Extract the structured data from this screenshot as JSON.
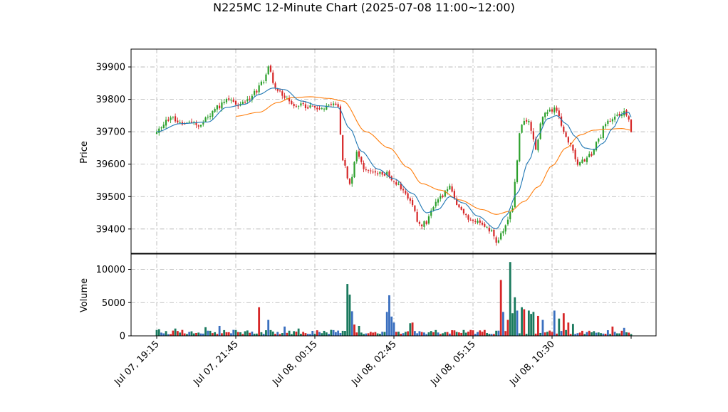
{
  "title": "N225MC 12-Minute Chart (2025-07-08 11:00~12:00)",
  "chart_data": {
    "type": "candlestick",
    "title": "N225MC 12-Minute Chart (2025-07-08 11:00~12:00)",
    "price_panel": {
      "ylabel": "Price",
      "yticks": [
        39400,
        39500,
        39600,
        39700,
        39800,
        39900
      ],
      "ylim": [
        39325,
        39955
      ],
      "grid": true
    },
    "volume_panel": {
      "ylabel": "Volume",
      "yticks": [
        0,
        5000,
        10000
      ],
      "yticks_labels": [
        "0",
        "5000",
        "10000"
      ],
      "ylim": [
        0,
        12300
      ],
      "grid": true
    },
    "xticks": [
      {
        "label": "Jul 07, 19:15",
        "index": 0
      },
      {
        "label": "Jul 07, 21:45",
        "index": 34
      },
      {
        "label": "Jul 08, 00:15",
        "index": 68
      },
      {
        "label": "Jul 08, 02:45",
        "index": 102
      },
      {
        "label": "Jul 08, 05:15",
        "index": 136
      },
      {
        "label": "Jul 08, 10:30",
        "index": 170
      }
    ],
    "x_count": 205,
    "up_color": "#2ca02c",
    "down_color": "#d62728",
    "volume_up_color": "#1a7a5e",
    "volume_down_color": "#d62728",
    "volume_other_color": "#3a6fbf",
    "series": [
      {
        "name": "ma_short",
        "color": "#1f77b4"
      },
      {
        "name": "ma_long",
        "color": "#ff7f0e"
      }
    ],
    "close_anchors": [
      [
        0,
        39700
      ],
      [
        3,
        39725
      ],
      [
        6,
        39745
      ],
      [
        10,
        39730
      ],
      [
        14,
        39725
      ],
      [
        18,
        39722
      ],
      [
        22,
        39740
      ],
      [
        26,
        39775
      ],
      [
        30,
        39800
      ],
      [
        34,
        39785
      ],
      [
        38,
        39790
      ],
      [
        42,
        39820
      ],
      [
        46,
        39860
      ],
      [
        48,
        39905
      ],
      [
        51,
        39835
      ],
      [
        55,
        39810
      ],
      [
        59,
        39785
      ],
      [
        63,
        39780
      ],
      [
        67,
        39775
      ],
      [
        71,
        39775
      ],
      [
        75,
        39790
      ],
      [
        78,
        39780
      ],
      [
        80,
        39610
      ],
      [
        83,
        39535
      ],
      [
        86,
        39640
      ],
      [
        89,
        39590
      ],
      [
        92,
        39575
      ],
      [
        95,
        39575
      ],
      [
        99,
        39570
      ],
      [
        103,
        39540
      ],
      [
        107,
        39510
      ],
      [
        110,
        39475
      ],
      [
        113,
        39410
      ],
      [
        116,
        39420
      ],
      [
        119,
        39470
      ],
      [
        122,
        39500
      ],
      [
        126,
        39530
      ],
      [
        129,
        39480
      ],
      [
        132,
        39450
      ],
      [
        135,
        39425
      ],
      [
        138,
        39420
      ],
      [
        141,
        39410
      ],
      [
        144,
        39390
      ],
      [
        146,
        39355
      ],
      [
        149,
        39390
      ],
      [
        151,
        39430
      ],
      [
        153,
        39470
      ],
      [
        154,
        39540
      ],
      [
        156,
        39690
      ],
      [
        158,
        39740
      ],
      [
        160,
        39730
      ],
      [
        163,
        39650
      ],
      [
        166,
        39745
      ],
      [
        168,
        39760
      ],
      [
        172,
        39770
      ],
      [
        175,
        39700
      ],
      [
        178,
        39660
      ],
      [
        181,
        39600
      ],
      [
        184,
        39610
      ],
      [
        187,
        39630
      ],
      [
        190,
        39675
      ],
      [
        193,
        39725
      ],
      [
        196,
        39740
      ],
      [
        199,
        39755
      ],
      [
        201,
        39765
      ],
      [
        203,
        39740
      ],
      [
        204,
        39700
      ]
    ],
    "ma_short_anchors": [
      [
        0,
        39700
      ],
      [
        10,
        39725
      ],
      [
        22,
        39730
      ],
      [
        30,
        39775
      ],
      [
        38,
        39785
      ],
      [
        44,
        39815
      ],
      [
        50,
        39835
      ],
      [
        55,
        39830
      ],
      [
        62,
        39795
      ],
      [
        70,
        39780
      ],
      [
        78,
        39775
      ],
      [
        83,
        39710
      ],
      [
        88,
        39640
      ],
      [
        95,
        39585
      ],
      [
        102,
        39555
      ],
      [
        110,
        39510
      ],
      [
        116,
        39450
      ],
      [
        121,
        39460
      ],
      [
        126,
        39500
      ],
      [
        132,
        39480
      ],
      [
        138,
        39440
      ],
      [
        146,
        39400
      ],
      [
        150,
        39440
      ],
      [
        155,
        39510
      ],
      [
        160,
        39610
      ],
      [
        164,
        39690
      ],
      [
        168,
        39740
      ],
      [
        172,
        39750
      ],
      [
        176,
        39725
      ],
      [
        180,
        39685
      ],
      [
        184,
        39650
      ],
      [
        188,
        39645
      ],
      [
        192,
        39665
      ],
      [
        196,
        39710
      ],
      [
        200,
        39755
      ],
      [
        203,
        39760
      ],
      [
        204,
        39745
      ]
    ],
    "ma_long_anchors": [
      [
        34,
        39748
      ],
      [
        44,
        39760
      ],
      [
        52,
        39790
      ],
      [
        58,
        39805
      ],
      [
        66,
        39808
      ],
      [
        74,
        39803
      ],
      [
        80,
        39795
      ],
      [
        90,
        39700
      ],
      [
        100,
        39650
      ],
      [
        108,
        39590
      ],
      [
        114,
        39540
      ],
      [
        122,
        39520
      ],
      [
        130,
        39490
      ],
      [
        140,
        39460
      ],
      [
        146,
        39445
      ],
      [
        152,
        39455
      ],
      [
        158,
        39485
      ],
      [
        164,
        39530
      ],
      [
        170,
        39595
      ],
      [
        176,
        39650
      ],
      [
        182,
        39690
      ],
      [
        188,
        39705
      ],
      [
        194,
        39708
      ],
      [
        200,
        39710
      ],
      [
        204,
        39705
      ]
    ],
    "volume_spikes": [
      [
        1,
        1000
      ],
      [
        8,
        1100
      ],
      [
        21,
        1300
      ],
      [
        27,
        1500
      ],
      [
        33,
        900
      ],
      [
        44,
        4300
      ],
      [
        48,
        2400
      ],
      [
        55,
        1400
      ],
      [
        61,
        1100
      ],
      [
        82,
        7800
      ],
      [
        83,
        6200
      ],
      [
        84,
        3700
      ],
      [
        85,
        1700
      ],
      [
        87,
        1500
      ],
      [
        99,
        3600
      ],
      [
        100,
        6100
      ],
      [
        101,
        2900
      ],
      [
        102,
        2000
      ],
      [
        109,
        1900
      ],
      [
        110,
        2000
      ],
      [
        148,
        8400
      ],
      [
        149,
        3600
      ],
      [
        151,
        2400
      ],
      [
        152,
        11100
      ],
      [
        153,
        3400
      ],
      [
        154,
        5800
      ],
      [
        155,
        3800
      ],
      [
        157,
        4300
      ],
      [
        158,
        4000
      ],
      [
        160,
        3800
      ],
      [
        161,
        3300
      ],
      [
        162,
        3600
      ],
      [
        164,
        3000
      ],
      [
        166,
        2400
      ],
      [
        171,
        3800
      ],
      [
        173,
        2600
      ],
      [
        175,
        3400
      ],
      [
        177,
        2000
      ],
      [
        179,
        1800
      ],
      [
        196,
        1400
      ],
      [
        201,
        1200
      ]
    ]
  }
}
